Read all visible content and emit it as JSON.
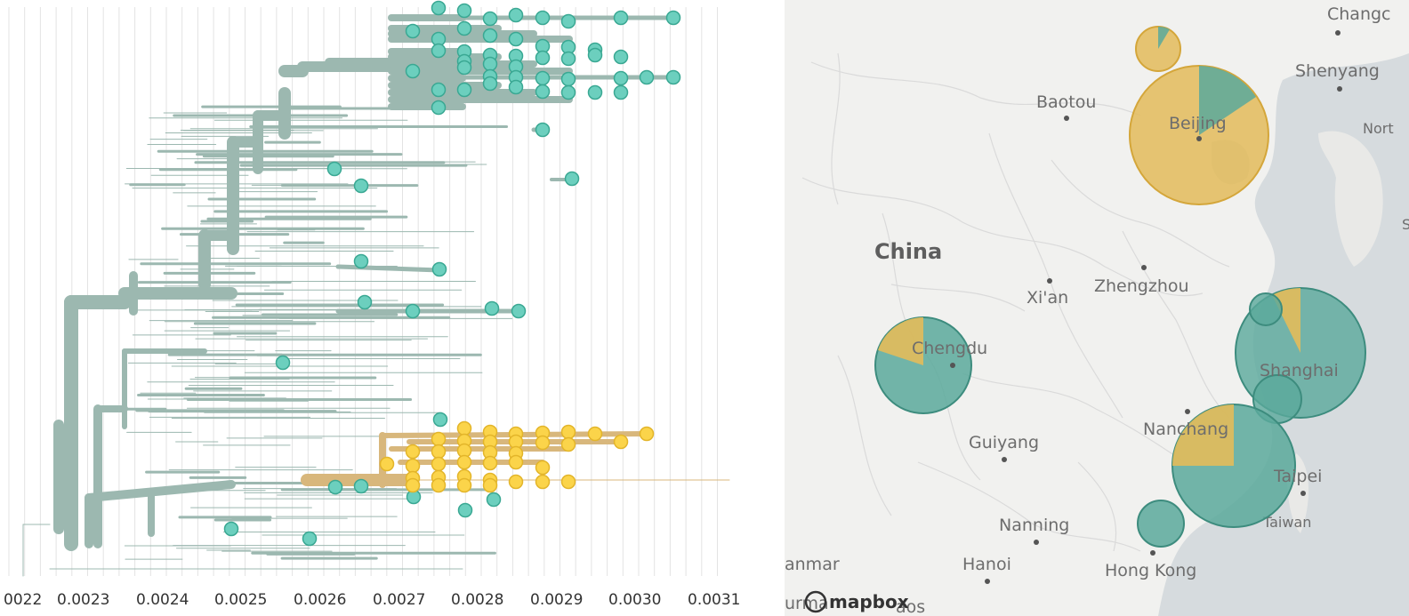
{
  "tree": {
    "axis_ticks": [
      "0022",
      "0.0023",
      "0.0024",
      "0.0025",
      "0.0026",
      "0.0027",
      "0.0028",
      "0.0029",
      "0.0030",
      "0.0031"
    ],
    "colors": {
      "branch": "#9cb8b0",
      "teal": "#6ccfbe",
      "teal_stroke": "#3aa893",
      "yellow": "#fbd44a",
      "yellow_stroke": "#e3b52a",
      "yellow_branch": "#d8b77c",
      "grid": "#e3e3e3"
    }
  },
  "map": {
    "country_label": "China",
    "cities": [
      "Changc",
      "Shenyang",
      "Nort",
      "Baotou",
      "Beijing",
      "Xi'an",
      "Zhengzhou",
      "Chengdu",
      "Shanghai",
      "Nanchang",
      "Guiyang",
      "Taipei",
      "Taiwan",
      "Nanning",
      "Hanoi",
      "Hong Kong",
      "anmar",
      "urma",
      "aos",
      "S"
    ],
    "attribution": "mapbox",
    "colors": {
      "pie_yellow": "#e3bb5a",
      "pie_teal": "#5aa99b",
      "land": "#efefed",
      "water": "#d2d7da"
    }
  }
}
